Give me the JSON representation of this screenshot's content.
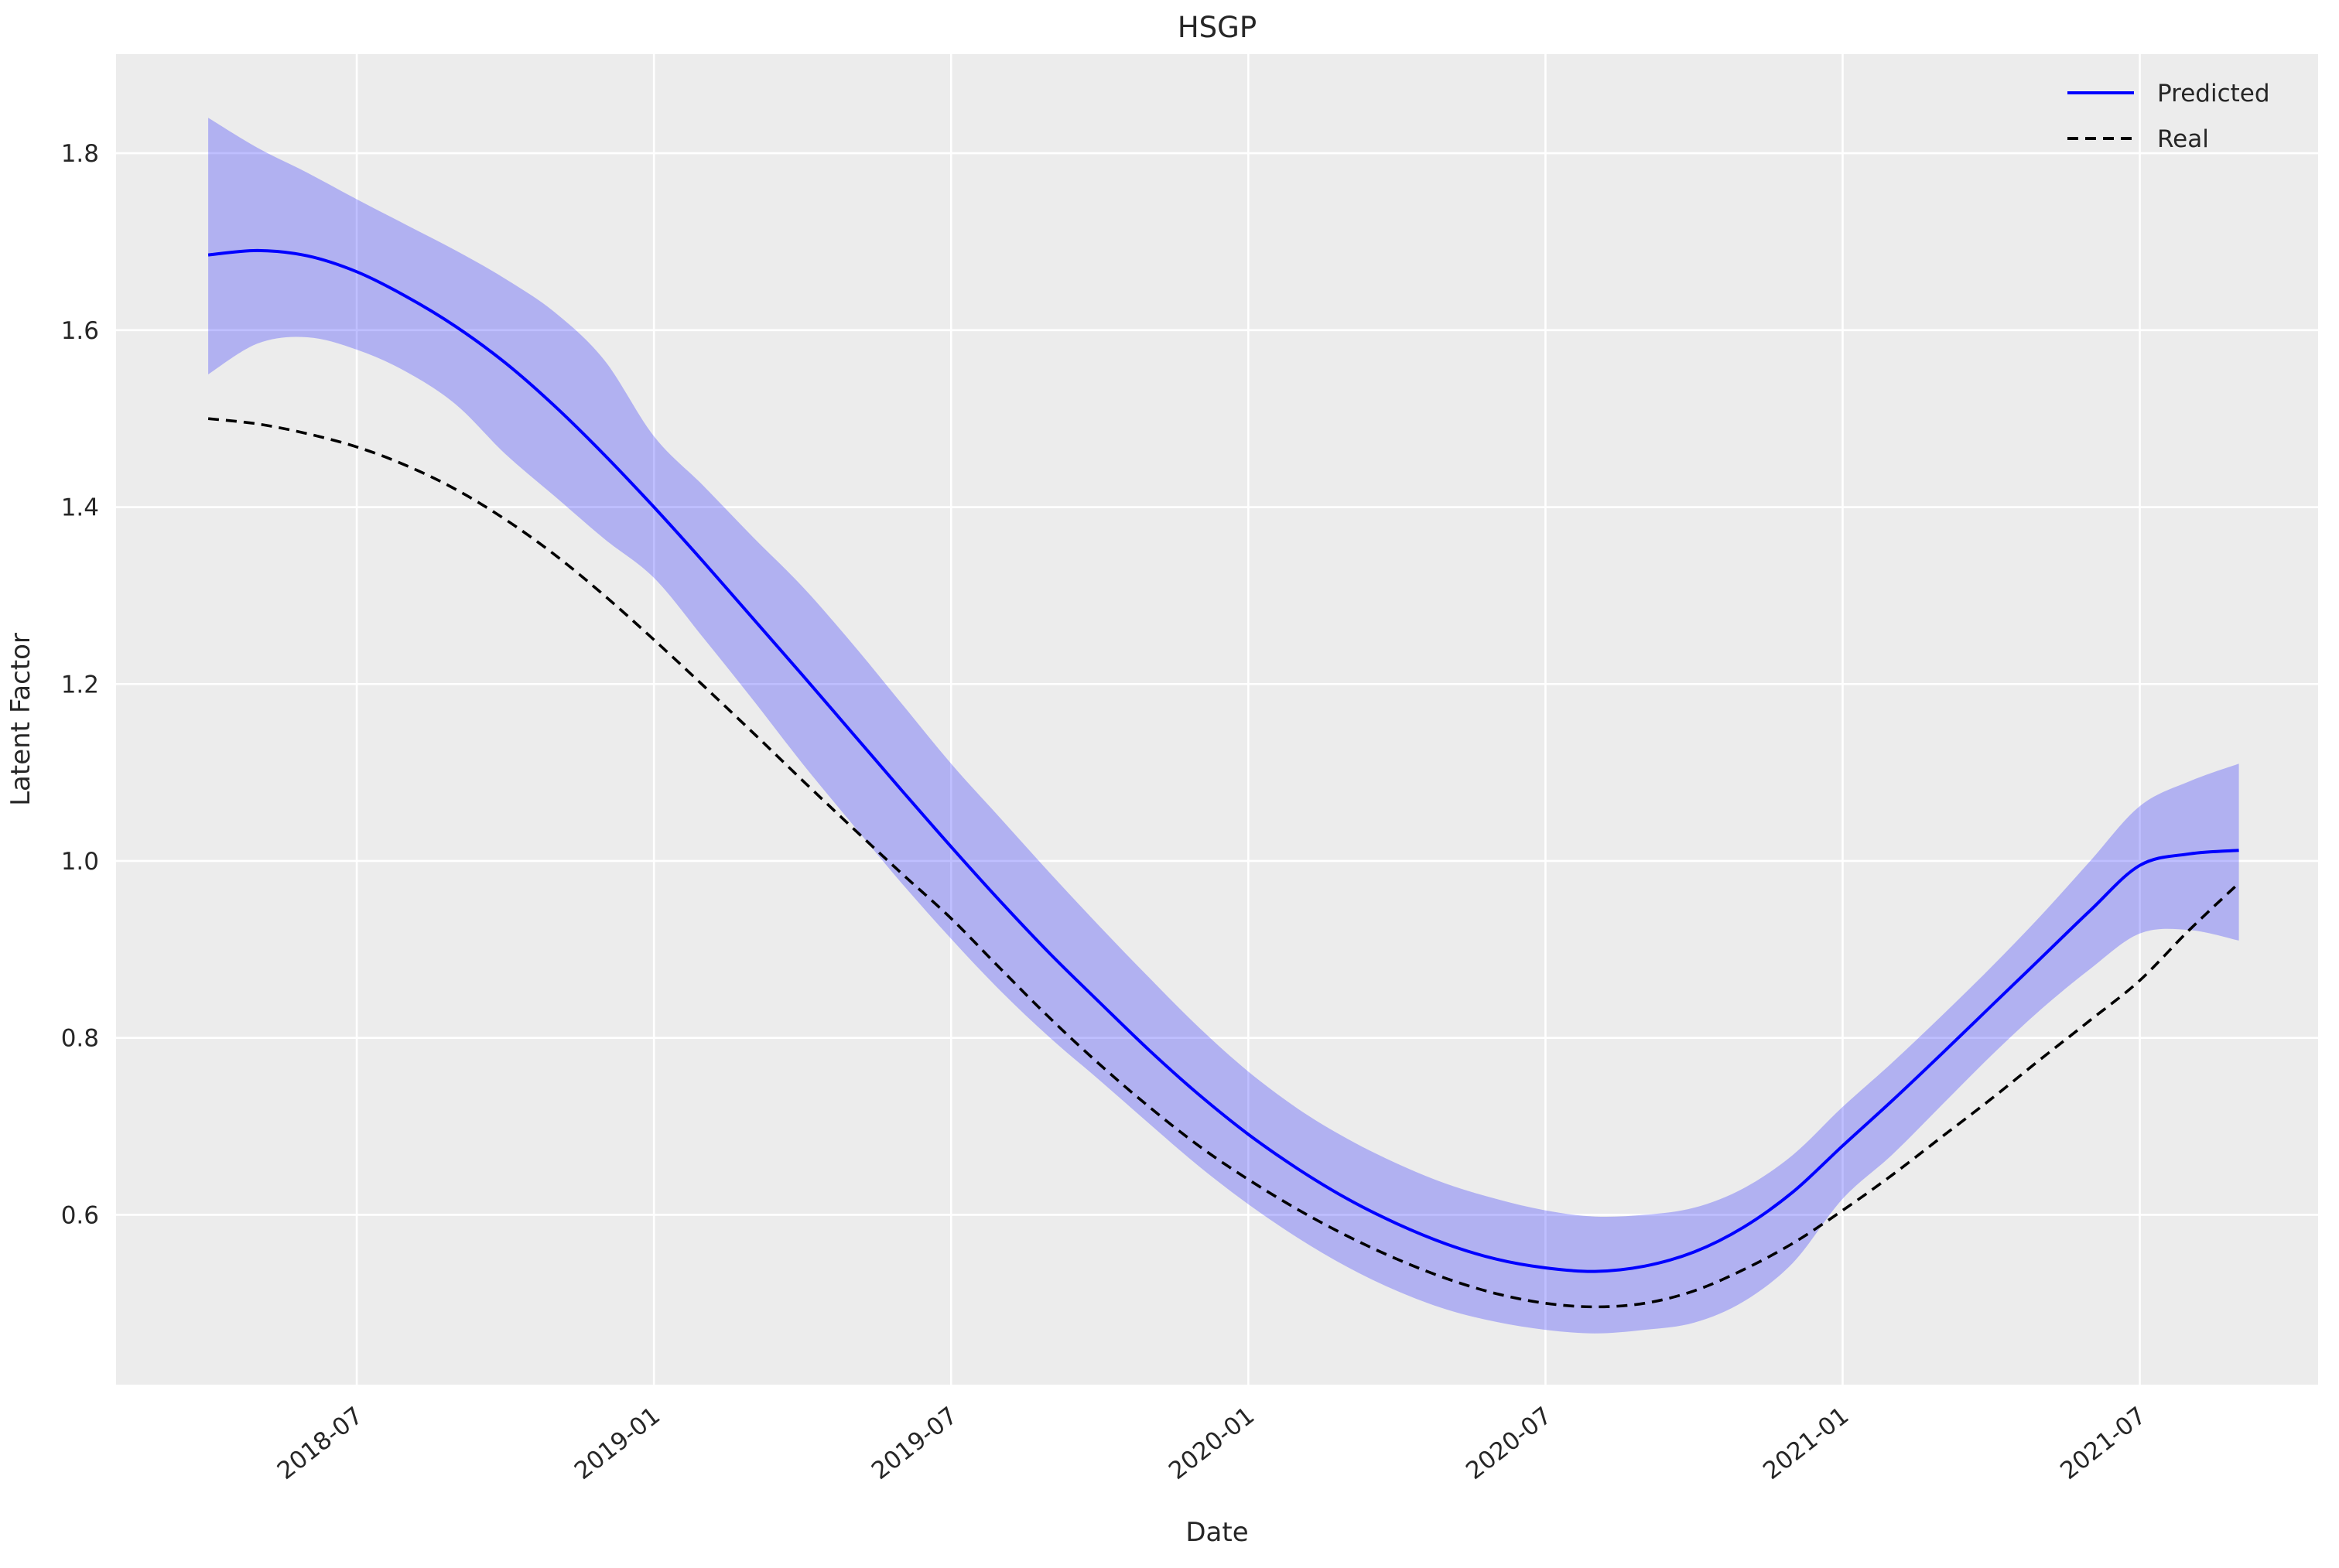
{
  "colors": {
    "figure_bg": "#ffffff",
    "axes_bg": "#ececec",
    "grid": "#ffffff",
    "text": "#262626",
    "predicted": "#0000ff",
    "real": "#000000",
    "band_fill": "#0000ff"
  },
  "chart_data": {
    "type": "line",
    "title": "HSGP",
    "xlabel": "Date",
    "ylabel": "Latent Factor",
    "grid": true,
    "legend": {
      "position": "upper right",
      "entries": [
        "Predicted",
        "Real"
      ]
    },
    "months": [
      "2018-04",
      "2018-05",
      "2018-06",
      "2018-07",
      "2018-08",
      "2018-09",
      "2018-10",
      "2018-11",
      "2018-12",
      "2019-01",
      "2019-02",
      "2019-03",
      "2019-04",
      "2019-05",
      "2019-06",
      "2019-07",
      "2019-08",
      "2019-09",
      "2019-10",
      "2019-11",
      "2019-12",
      "2020-01",
      "2020-02",
      "2020-03",
      "2020-04",
      "2020-05",
      "2020-06",
      "2020-07",
      "2020-08",
      "2020-09",
      "2020-10",
      "2020-11",
      "2020-12",
      "2021-01",
      "2021-02",
      "2021-03",
      "2021-04",
      "2021-05",
      "2021-06",
      "2021-07",
      "2021-08",
      "2021-09"
    ],
    "x_tick_labels": [
      "2018-07",
      "2019-01",
      "2019-07",
      "2020-01",
      "2020-07",
      "2021-01",
      "2021-07"
    ],
    "x_tick_month_index": [
      3,
      9,
      15,
      21,
      27,
      33,
      39
    ],
    "y_tick_labels": [
      "0.6",
      "0.8",
      "1.0",
      "1.2",
      "1.4",
      "1.6",
      "1.8"
    ],
    "y_tick_values": [
      0.6,
      0.8,
      1.0,
      1.2,
      1.4,
      1.6,
      1.8
    ],
    "x_range_months": [
      -1.86,
      42.6
    ],
    "y_range": [
      0.408,
      1.912
    ],
    "series": [
      {
        "name": "Predicted",
        "color": "#0000ff",
        "line_style": "solid",
        "values": [
          1.685,
          1.69,
          1.684,
          1.666,
          1.638,
          1.604,
          1.563,
          1.514,
          1.459,
          1.4,
          1.338,
          1.274,
          1.21,
          1.145,
          1.08,
          1.016,
          0.954,
          0.895,
          0.84,
          0.786,
          0.736,
          0.691,
          0.652,
          0.618,
          0.59,
          0.567,
          0.55,
          0.54,
          0.536,
          0.542,
          0.558,
          0.586,
          0.626,
          0.678,
          0.729,
          0.782,
          0.836,
          0.89,
          0.944,
          0.995,
          1.008,
          1.012
        ]
      },
      {
        "name": "Real",
        "color": "#000000",
        "line_style": "dashed",
        "values": [
          1.5,
          1.494,
          1.483,
          1.468,
          1.447,
          1.42,
          1.386,
          1.346,
          1.3,
          1.25,
          1.198,
          1.145,
          1.091,
          1.038,
          0.986,
          0.935,
          0.878,
          0.822,
          0.77,
          0.722,
          0.678,
          0.64,
          0.606,
          0.576,
          0.55,
          0.528,
          0.511,
          0.5,
          0.496,
          0.5,
          0.514,
          0.538,
          0.568,
          0.605,
          0.645,
          0.688,
          0.731,
          0.776,
          0.82,
          0.865,
          0.922,
          0.975
        ]
      }
    ],
    "band": {
      "series": "Predicted",
      "color": "#0000ff",
      "opacity": 0.25,
      "lower": [
        1.55,
        1.585,
        1.592,
        1.578,
        1.553,
        1.516,
        1.46,
        1.412,
        1.364,
        1.32,
        1.252,
        1.182,
        1.11,
        1.042,
        0.975,
        0.912,
        0.853,
        0.8,
        0.752,
        0.703,
        0.655,
        0.612,
        0.574,
        0.541,
        0.514,
        0.493,
        0.479,
        0.47,
        0.466,
        0.47,
        0.478,
        0.502,
        0.546,
        0.618,
        0.668,
        0.724,
        0.78,
        0.832,
        0.878,
        0.918,
        0.922,
        0.91
      ],
      "upper": [
        1.84,
        1.806,
        1.778,
        1.748,
        1.719,
        1.69,
        1.658,
        1.62,
        1.566,
        1.48,
        1.424,
        1.366,
        1.31,
        1.246,
        1.178,
        1.11,
        1.048,
        0.986,
        0.926,
        0.868,
        0.812,
        0.762,
        0.72,
        0.686,
        0.658,
        0.635,
        0.618,
        0.605,
        0.598,
        0.6,
        0.608,
        0.63,
        0.668,
        0.722,
        0.772,
        0.825,
        0.88,
        0.938,
        1.0,
        1.062,
        1.09,
        1.11
      ]
    }
  }
}
